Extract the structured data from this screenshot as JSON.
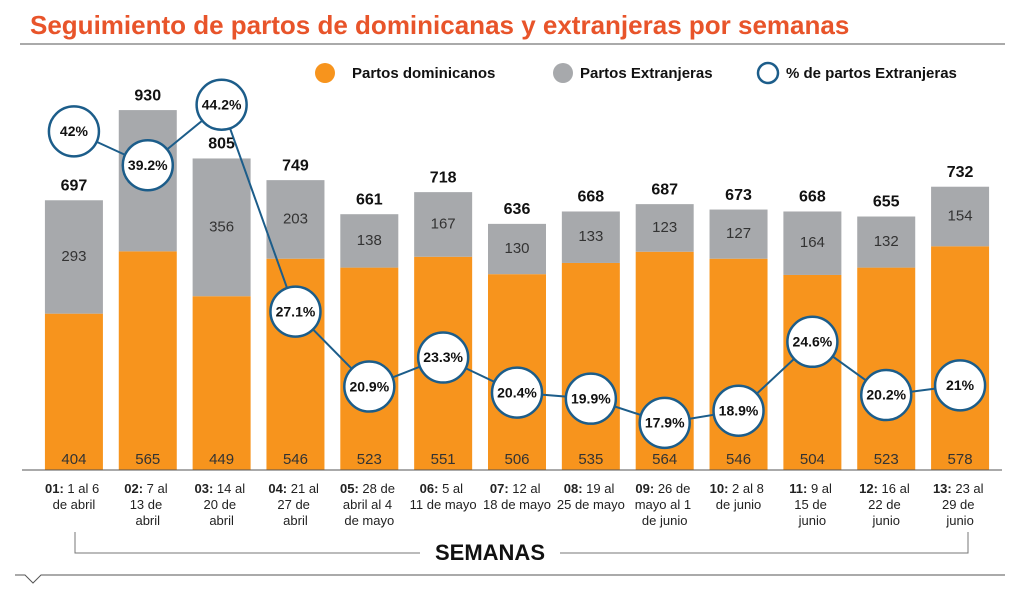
{
  "chart_data": {
    "type": "bar",
    "title": "Seguimiento de partos de dominicanas y extranjeras por semanas",
    "x_label": "SEMANAS",
    "categories": [
      "01: 1 al 6 de abril",
      "02: 7 al 13 de abril",
      "03: 14 al 20 de abril",
      "04: 21 al 27 de abril",
      "05: 28 de abril al 4 de mayo",
      "06: 5 al 11 de mayo",
      "07: 12 al 18 de mayo",
      "08: 19 al 25 de mayo",
      "09: 26 de mayo al 1 de junio",
      "10: 2 al 8 de junio",
      "11: 9 al 15 de junio",
      "12: 16 al 22 de junio",
      "13: 23 al 29 de junio"
    ],
    "stacked": true,
    "series": [
      {
        "name": "Partos dominicanos",
        "color": "#f7941d",
        "values": [
          404,
          565,
          449,
          546,
          523,
          551,
          506,
          535,
          564,
          546,
          504,
          523,
          578
        ]
      },
      {
        "name": "Partos Extranjeras",
        "color": "#a7a9ac",
        "values": [
          293,
          365,
          356,
          203,
          138,
          167,
          130,
          133,
          123,
          127,
          164,
          132,
          154
        ]
      },
      {
        "name": "% de partos Extranjeras",
        "type": "line",
        "axis": "y2",
        "color": "#1c5d8a",
        "values": [
          42,
          39.2,
          44.2,
          27.1,
          20.9,
          23.3,
          20.4,
          19.9,
          17.9,
          18.9,
          24.6,
          20.2,
          21
        ],
        "value_labels": [
          "42%",
          "39.2%",
          "44.2%",
          "27.1%",
          "20.9%",
          "23.3%",
          "20.4%",
          "19.9%",
          "17.9%",
          "18.9%",
          "24.6%",
          "20.2%",
          "21%"
        ]
      }
    ],
    "totals": [
      697,
      930,
      805,
      749,
      661,
      718,
      636,
      668,
      687,
      673,
      668,
      655,
      732
    ],
    "ylim": [
      0,
      1000
    ],
    "y2lim": [
      14,
      46
    ]
  }
}
